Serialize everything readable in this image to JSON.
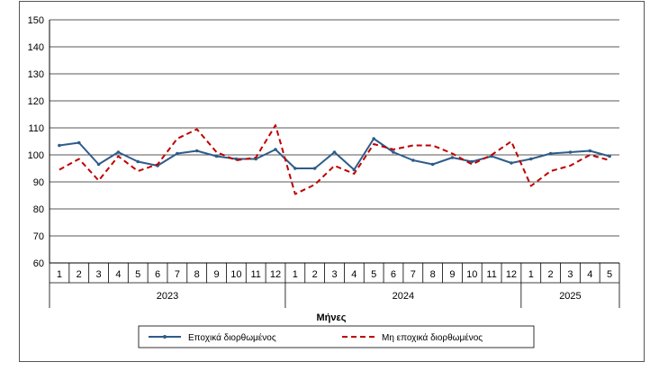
{
  "chart_data": {
    "type": "line",
    "title": "",
    "xlabel": "Μήνες",
    "ylabel": "",
    "ylim": [
      60,
      150
    ],
    "yticks": [
      60,
      70,
      80,
      90,
      100,
      110,
      120,
      130,
      140,
      150
    ],
    "grid": true,
    "legend_position": "bottom",
    "month_labels": [
      "1",
      "2",
      "3",
      "4",
      "5",
      "6",
      "7",
      "8",
      "9",
      "10",
      "11",
      "12",
      "1",
      "2",
      "3",
      "4",
      "5",
      "6",
      "7",
      "8",
      "9",
      "10",
      "11",
      "12",
      "1",
      "2",
      "3",
      "4",
      "5"
    ],
    "year_groups": [
      {
        "label": "2023",
        "count": 12
      },
      {
        "label": "2024",
        "count": 12
      },
      {
        "label": "2025",
        "count": 5
      }
    ],
    "series": [
      {
        "name": "Εποχικά διορθωμένος",
        "color": "#2e5c8a",
        "style": "solid",
        "values": [
          103.5,
          104.5,
          96.5,
          101,
          97.5,
          96,
          100.5,
          101.5,
          99.5,
          98.5,
          98.5,
          102,
          95,
          95,
          101,
          94.5,
          106,
          101,
          98,
          96.5,
          99,
          97.5,
          99.5,
          97,
          98.5,
          100.5,
          101,
          101.5,
          99.5
        ]
      },
      {
        "name": "Μη εποχικά διορθωμένος",
        "color": "#c00000",
        "style": "dashed",
        "values": [
          94.5,
          98.5,
          90.5,
          99.5,
          94,
          96.5,
          106,
          109.5,
          101,
          98,
          99,
          111,
          85.5,
          89,
          96,
          93,
          104,
          102,
          103.5,
          103.5,
          100.5,
          96.5,
          100,
          105,
          88.5,
          94,
          96,
          100,
          98
        ]
      }
    ]
  }
}
